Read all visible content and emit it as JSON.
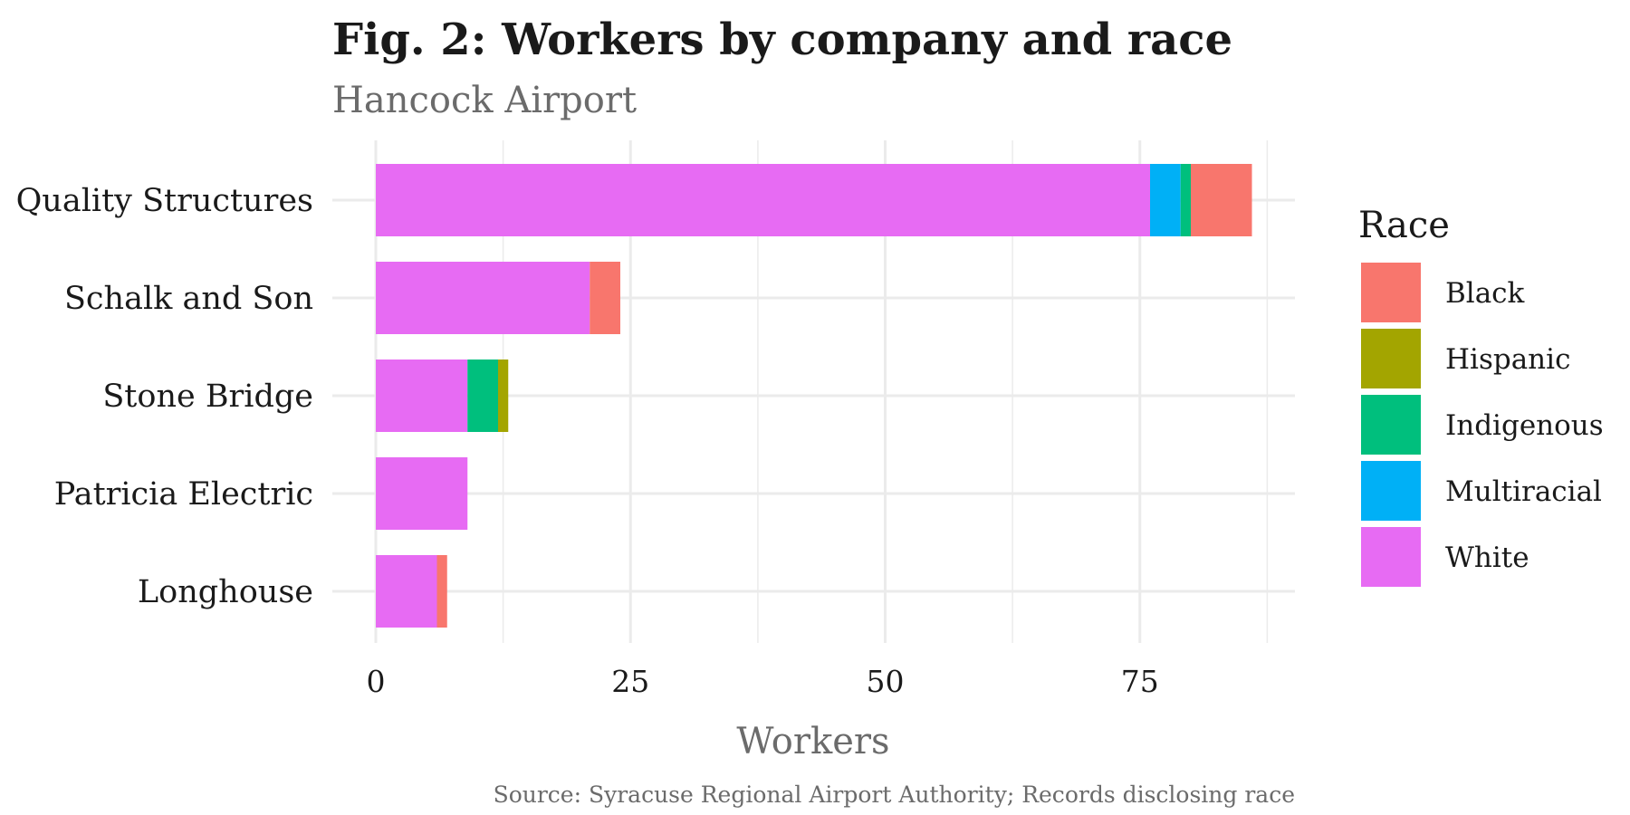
{
  "chart_data": {
    "type": "bar",
    "orientation": "horizontal",
    "stacked": true,
    "title": "Fig. 2: Workers by company and race",
    "subtitle": "Hancock Airport",
    "xlabel": "Workers",
    "ylabel": "",
    "caption": "Source: Syracuse Regional Airport Authority; Records disclosing race",
    "categories": [
      "Quality Structures",
      "Schalk and Son",
      "Stone Bridge",
      "Patricia Electric",
      "Longhouse"
    ],
    "xlim": [
      0,
      90
    ],
    "xticks": [
      0,
      25,
      50,
      75
    ],
    "grid": true,
    "legend_title": "Race",
    "legend_position": "right",
    "series": [
      {
        "name": "White",
        "color": "#E76BF3",
        "values": [
          76,
          21,
          9,
          9,
          6
        ]
      },
      {
        "name": "Multiracial",
        "color": "#00B0F6",
        "values": [
          3,
          0,
          0,
          0,
          0
        ]
      },
      {
        "name": "Indigenous",
        "color": "#00BF7D",
        "values": [
          1,
          0,
          3,
          0,
          0
        ]
      },
      {
        "name": "Hispanic",
        "color": "#A3A500",
        "values": [
          0,
          0,
          1,
          0,
          0
        ]
      },
      {
        "name": "Black",
        "color": "#F8766D",
        "values": [
          6,
          3,
          0,
          0,
          1
        ]
      }
    ],
    "legend_order": [
      "Black",
      "Hispanic",
      "Indigenous",
      "Multiracial",
      "White"
    ]
  }
}
